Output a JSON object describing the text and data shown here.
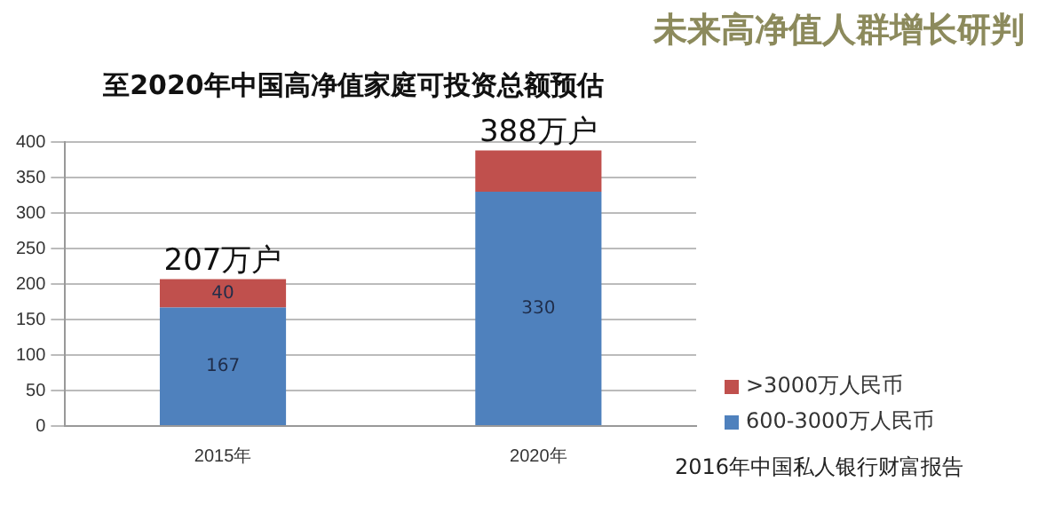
{
  "chart_data": {
    "type": "bar",
    "title": "至2020年中国高净值家庭可投资总额预估",
    "annotations": [
      "未来高净值人群增长研判",
      "2016年中国私人银行财富报告"
    ],
    "categories": [
      "2015年",
      "2020年"
    ],
    "series": [
      {
        "name": "600-3000万人民币",
        "color": "#4f81bd",
        "values": [
          167,
          330
        ],
        "value_labels": [
          "167",
          "330"
        ]
      },
      {
        "name": ">3000万人民币",
        "color": "#c0504d",
        "values": [
          40,
          58
        ],
        "value_labels": [
          "40",
          null
        ]
      }
    ],
    "totals": [
      "207万户",
      "388万户"
    ],
    "stacked": true,
    "ylim": [
      0,
      400
    ],
    "yticks": [
      0,
      50,
      100,
      150,
      200,
      250,
      300,
      350,
      400
    ],
    "grid": "y",
    "legend": "right"
  }
}
